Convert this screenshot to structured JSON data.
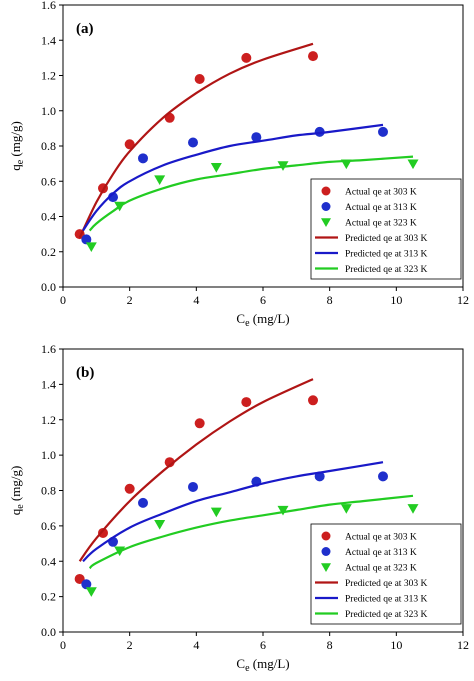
{
  "chart_data": [
    {
      "type": "scatter",
      "panel_label": "(a)",
      "xlabel": "C",
      "xlabel_sub": "e",
      "xlabel_unit": " (mg/L)",
      "ylabel": "q",
      "ylabel_sub": "e",
      "ylabel_unit": " (mg/g)",
      "xlim": [
        0,
        12
      ],
      "ylim": [
        0,
        1.6
      ],
      "xticks": [
        "0",
        "2",
        "4",
        "6",
        "8",
        "10",
        "12"
      ],
      "yticks": [
        "0.0",
        "0.2",
        "0.4",
        "0.6",
        "0.8",
        "1.0",
        "1.2",
        "1.4",
        "1.6"
      ],
      "grid": false,
      "legend_position": "lower-right",
      "series": [
        {
          "name": "Actual qe at 303 K",
          "kind": "points",
          "marker": "circle",
          "color": "#cc1f1f",
          "x": [
            0.5,
            1.2,
            2.0,
            3.2,
            4.1,
            5.5,
            7.5
          ],
          "y": [
            0.3,
            0.56,
            0.81,
            0.96,
            1.18,
            1.3,
            1.31
          ]
        },
        {
          "name": "Actual qe at 313 K",
          "kind": "points",
          "marker": "circle",
          "color": "#1f2fcc",
          "x": [
            0.7,
            1.5,
            2.4,
            3.9,
            5.8,
            7.7,
            9.6
          ],
          "y": [
            0.27,
            0.51,
            0.73,
            0.82,
            0.85,
            0.88,
            0.88
          ]
        },
        {
          "name": "Actual qe at 323 K",
          "kind": "points",
          "marker": "triangle-down",
          "color": "#22cc22",
          "x": [
            0.85,
            1.7,
            2.9,
            4.6,
            6.6,
            8.5,
            10.5
          ],
          "y": [
            0.23,
            0.46,
            0.61,
            0.68,
            0.69,
            0.7,
            0.7
          ]
        },
        {
          "name": "Predicted qe at 303 K",
          "kind": "line",
          "color": "#b01515",
          "x": [
            0.5,
            1.0,
            1.5,
            2.0,
            3.0,
            4.0,
            5.0,
            6.0,
            7.5
          ],
          "y": [
            0.28,
            0.48,
            0.64,
            0.77,
            0.96,
            1.1,
            1.21,
            1.29,
            1.38
          ]
        },
        {
          "name": "Predicted qe at 313 K",
          "kind": "line",
          "color": "#1919c8",
          "x": [
            0.6,
            1.0,
            1.5,
            2.0,
            3.0,
            4.0,
            5.0,
            6.0,
            7.0,
            8.0,
            9.6
          ],
          "y": [
            0.32,
            0.43,
            0.53,
            0.6,
            0.69,
            0.75,
            0.8,
            0.83,
            0.86,
            0.88,
            0.92
          ]
        },
        {
          "name": "Predicted qe at 323 K",
          "kind": "line",
          "color": "#22cc22",
          "x": [
            0.8,
            1.0,
            1.5,
            2.0,
            3.0,
            4.0,
            5.0,
            6.0,
            7.0,
            8.0,
            9.0,
            10.5
          ],
          "y": [
            0.32,
            0.36,
            0.43,
            0.49,
            0.56,
            0.61,
            0.64,
            0.67,
            0.69,
            0.71,
            0.72,
            0.74
          ]
        }
      ]
    },
    {
      "type": "scatter",
      "panel_label": "(b)",
      "xlabel": "C",
      "xlabel_sub": "e",
      "xlabel_unit": " (mg/L)",
      "ylabel": "q",
      "ylabel_sub": "e",
      "ylabel_unit": " (mg/g)",
      "xlim": [
        0,
        12
      ],
      "ylim": [
        0,
        1.6
      ],
      "xticks": [
        "0",
        "2",
        "4",
        "6",
        "8",
        "10",
        "12"
      ],
      "yticks": [
        "0.0",
        "0.2",
        "0.4",
        "0.6",
        "0.8",
        "1.0",
        "1.2",
        "1.4",
        "1.6"
      ],
      "grid": false,
      "legend_position": "lower-right",
      "series": [
        {
          "name": "Actual qe at 303 K",
          "kind": "points",
          "marker": "circle",
          "color": "#cc1f1f",
          "x": [
            0.5,
            1.2,
            2.0,
            3.2,
            4.1,
            5.5,
            7.5
          ],
          "y": [
            0.3,
            0.56,
            0.81,
            0.96,
            1.18,
            1.3,
            1.31
          ]
        },
        {
          "name": "Actual qe at 313 K",
          "kind": "points",
          "marker": "circle",
          "color": "#1f2fcc",
          "x": [
            0.7,
            1.5,
            2.4,
            3.9,
            5.8,
            7.7,
            9.6
          ],
          "y": [
            0.27,
            0.51,
            0.73,
            0.82,
            0.85,
            0.88,
            0.88
          ]
        },
        {
          "name": "Actual qe at 323 K",
          "kind": "points",
          "marker": "triangle-down",
          "color": "#22cc22",
          "x": [
            0.85,
            1.7,
            2.9,
            4.6,
            6.6,
            8.5,
            10.5
          ],
          "y": [
            0.23,
            0.46,
            0.61,
            0.68,
            0.69,
            0.7,
            0.7
          ]
        },
        {
          "name": "Predicted qe at 303 K",
          "kind": "line",
          "color": "#b01515",
          "x": [
            0.5,
            1.0,
            2.0,
            3.0,
            4.0,
            5.0,
            6.0,
            7.5
          ],
          "y": [
            0.4,
            0.53,
            0.74,
            0.91,
            1.06,
            1.19,
            1.3,
            1.43
          ]
        },
        {
          "name": "Predicted qe at 313 K",
          "kind": "line",
          "color": "#1919c8",
          "x": [
            0.6,
            1.0,
            2.0,
            3.0,
            4.0,
            5.0,
            6.0,
            7.0,
            8.0,
            9.6
          ],
          "y": [
            0.4,
            0.47,
            0.59,
            0.67,
            0.74,
            0.79,
            0.84,
            0.88,
            0.91,
            0.96
          ]
        },
        {
          "name": "Predicted qe at 323 K",
          "kind": "line",
          "color": "#22cc22",
          "x": [
            0.8,
            1.0,
            2.0,
            3.0,
            4.0,
            5.0,
            6.0,
            7.0,
            8.0,
            9.0,
            10.5
          ],
          "y": [
            0.36,
            0.39,
            0.48,
            0.54,
            0.59,
            0.63,
            0.66,
            0.69,
            0.72,
            0.74,
            0.77
          ]
        }
      ]
    }
  ]
}
